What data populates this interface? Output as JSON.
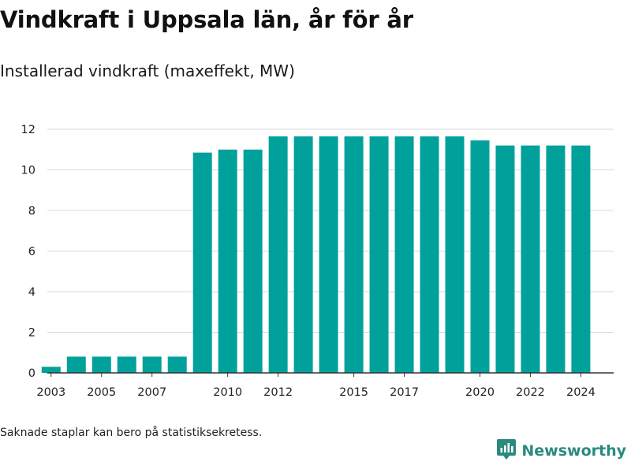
{
  "title": "Vindkraft i Uppsala län, år för år",
  "subtitle": "Installerad vindkraft (maxeffekt, MW)",
  "footnote": "Saknade staplar kan bero på statistiksekretess.",
  "brand": {
    "name": "Newsworthy",
    "icon": "newsworthy-logo-icon",
    "color": "#2a8a7e"
  },
  "chart_data": {
    "type": "bar",
    "title": "",
    "xlabel": "",
    "ylabel": "",
    "color": "#00a19a",
    "grid": true,
    "ylim": [
      0,
      12
    ],
    "yticks": [
      0,
      2,
      4,
      6,
      8,
      10,
      12
    ],
    "xticks": [
      2003,
      2005,
      2007,
      2010,
      2012,
      2015,
      2017,
      2020,
      2022,
      2024
    ],
    "categories": [
      2003,
      2004,
      2005,
      2006,
      2007,
      2008,
      2009,
      2010,
      2011,
      2012,
      2013,
      2014,
      2015,
      2016,
      2017,
      2018,
      2019,
      2020,
      2021,
      2022,
      2023,
      2024
    ],
    "values": [
      0.3,
      0.8,
      0.8,
      0.8,
      0.8,
      0.8,
      10.85,
      11.0,
      11.0,
      11.65,
      11.65,
      11.65,
      11.65,
      11.65,
      11.65,
      11.65,
      11.65,
      11.45,
      11.2,
      11.2,
      11.2,
      11.2
    ]
  }
}
